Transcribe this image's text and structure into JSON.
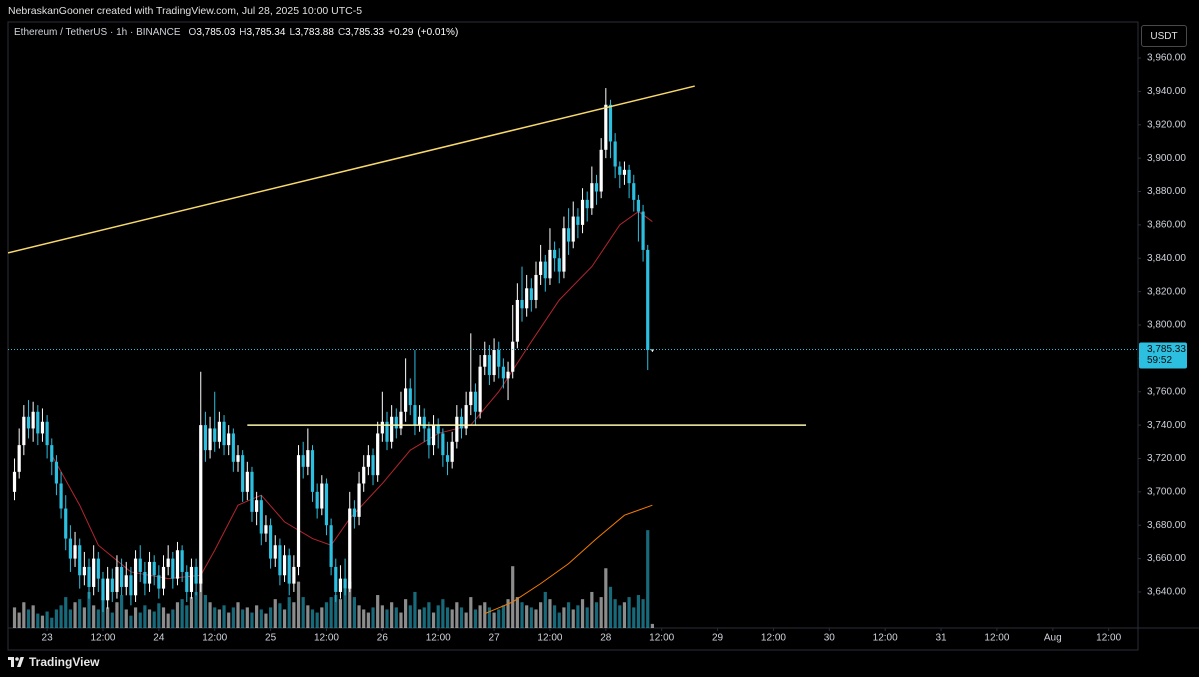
{
  "header": {
    "text": "NebraskanGooner created with TradingView.com, Jul 28, 2025 10:00 UTC-5"
  },
  "footer": {
    "brand": "TradingView"
  },
  "currency_button": "USDT",
  "chart_data": {
    "type": "candlestick",
    "symbol": "Ethereum / TetherUS · 1h · BINANCE",
    "ohlc_legend": [
      {
        "key": "O",
        "value": 3785.03,
        "label": "3,785.03"
      },
      {
        "key": "H",
        "value": 3785.34,
        "label": "3,785.34"
      },
      {
        "key": "L",
        "value": 3783.88,
        "label": "3,783.88"
      },
      {
        "key": "C",
        "value": 3785.33,
        "label": "3,785.33"
      }
    ],
    "change": {
      "value": 0.29,
      "label": "+0.29"
    },
    "change_pct": {
      "value": 0.01,
      "label": "(+0.01%)"
    },
    "up_color": "#ffffff",
    "down_color": "#2cbfdf",
    "grid": false,
    "ylim": [
      3618.4,
      3981.6
    ],
    "yticks": [
      {
        "value": 3640,
        "label": "3,640.00"
      },
      {
        "value": 3660,
        "label": "3,660.00"
      },
      {
        "value": 3680,
        "label": "3,680.00"
      },
      {
        "value": 3700,
        "label": "3,700.00"
      },
      {
        "value": 3720,
        "label": "3,720.00"
      },
      {
        "value": 3740,
        "label": "3,740.00"
      },
      {
        "value": 3760,
        "label": "3,760.00"
      },
      {
        "value": 3780,
        "label": "3,780.00"
      },
      {
        "value": 3800,
        "label": "3,800.00"
      },
      {
        "value": 3820,
        "label": "3,820.00"
      },
      {
        "value": 3840,
        "label": "3,840.00"
      },
      {
        "value": 3860,
        "label": "3,860.00"
      },
      {
        "value": 3880,
        "label": "3,880.00"
      },
      {
        "value": 3900,
        "label": "3,900.00"
      },
      {
        "value": 3920,
        "label": "3,920.00"
      },
      {
        "value": 3940,
        "label": "3,940.00"
      },
      {
        "value": 3960,
        "label": "3,960.00"
      }
    ],
    "xlim": [
      -8.4,
      234.3
    ],
    "xticks": [
      {
        "value": 0,
        "label": "23"
      },
      {
        "value": 12,
        "label": "12:00"
      },
      {
        "value": 24,
        "label": "24"
      },
      {
        "value": 36,
        "label": "12:00"
      },
      {
        "value": 48,
        "label": "25"
      },
      {
        "value": 60,
        "label": "12:00"
      },
      {
        "value": 72,
        "label": "26"
      },
      {
        "value": 84,
        "label": "12:00"
      },
      {
        "value": 96,
        "label": "27"
      },
      {
        "value": 108,
        "label": "12:00"
      },
      {
        "value": 120,
        "label": "28"
      },
      {
        "value": 132,
        "label": "12:00"
      },
      {
        "value": 144,
        "label": "29"
      },
      {
        "value": 156,
        "label": "12:00"
      },
      {
        "value": 168,
        "label": "30"
      },
      {
        "value": 180,
        "label": "12:00"
      },
      {
        "value": 192,
        "label": "31"
      },
      {
        "value": 204,
        "label": "12:00"
      },
      {
        "value": 216,
        "label": "Aug"
      },
      {
        "value": 228,
        "label": "12:00"
      }
    ],
    "x": [
      -7,
      -6,
      -5,
      -4,
      -3,
      -2,
      -1,
      0,
      1,
      2,
      3,
      4,
      5,
      6,
      7,
      8,
      9,
      10,
      11,
      12,
      13,
      14,
      15,
      16,
      17,
      18,
      19,
      20,
      21,
      22,
      23,
      24,
      25,
      26,
      27,
      28,
      29,
      30,
      31,
      32,
      33,
      34,
      35,
      36,
      37,
      38,
      39,
      40,
      41,
      42,
      43,
      44,
      45,
      46,
      47,
      48,
      49,
      50,
      51,
      52,
      53,
      54,
      55,
      56,
      57,
      58,
      59,
      60,
      61,
      62,
      63,
      64,
      65,
      66,
      67,
      68,
      69,
      70,
      71,
      72,
      73,
      74,
      75,
      76,
      77,
      78,
      79,
      80,
      81,
      82,
      83,
      84,
      85,
      86,
      87,
      88,
      89,
      90,
      91,
      92,
      93,
      94,
      95,
      96,
      97,
      98,
      99,
      100,
      101,
      102,
      103,
      104,
      105,
      106,
      107,
      108,
      109,
      110,
      111,
      112,
      113,
      114,
      115,
      116,
      117,
      118,
      119,
      120,
      121,
      122,
      123,
      124,
      125,
      126,
      127,
      128,
      129,
      130
    ],
    "open": [
      3700,
      3712,
      3728,
      3745,
      3738,
      3748,
      3735,
      3742,
      3728,
      3718,
      3705,
      3690,
      3672,
      3660,
      3668,
      3650,
      3655,
      3643,
      3660,
      3648,
      3635,
      3648,
      3640,
      3655,
      3643,
      3650,
      3638,
      3660,
      3652,
      3645,
      3658,
      3650,
      3642,
      3655,
      3660,
      3648,
      3665,
      3652,
      3640,
      3655,
      3645,
      3740,
      3725,
      3738,
      3730,
      3742,
      3728,
      3735,
      3718,
      3722,
      3700,
      3712,
      3688,
      3695,
      3675,
      3680,
      3660,
      3668,
      3650,
      3662,
      3645,
      3655,
      3722,
      3715,
      3725,
      3700,
      3690,
      3705,
      3680,
      3655,
      3640,
      3648,
      3642,
      3690,
      3685,
      3705,
      3715,
      3722,
      3710,
      3735,
      3742,
      3730,
      3745,
      3738,
      3748,
      3762,
      3752,
      3740,
      3745,
      3738,
      3728,
      3740,
      3735,
      3722,
      3718,
      3730,
      3745,
      3738,
      3752,
      3760,
      3748,
      3775,
      3782,
      3770,
      3785,
      3775,
      3768,
      3772,
      3790,
      3815,
      3810,
      3822,
      3815,
      3830,
      3838,
      3828,
      3845,
      3840,
      3832,
      3858,
      3850,
      3865,
      3860,
      3875,
      3870,
      3885,
      3880,
      3905,
      3932,
      3910,
      3895,
      3890,
      3893,
      3885,
      3875,
      3868,
      3845,
      3785.03
    ],
    "high": [
      3720,
      3738,
      3752,
      3755,
      3754,
      3752,
      3750,
      3746,
      3732,
      3722,
      3712,
      3698,
      3680,
      3676,
      3672,
      3664,
      3660,
      3668,
      3664,
      3652,
      3655,
      3654,
      3662,
      3660,
      3658,
      3655,
      3665,
      3668,
      3658,
      3664,
      3662,
      3656,
      3662,
      3668,
      3664,
      3670,
      3668,
      3656,
      3660,
      3660,
      3772,
      3748,
      3745,
      3760,
      3748,
      3746,
      3740,
      3738,
      3728,
      3725,
      3718,
      3715,
      3700,
      3698,
      3686,
      3684,
      3674,
      3672,
      3668,
      3666,
      3662,
      3728,
      3730,
      3738,
      3728,
      3705,
      3710,
      3708,
      3684,
      3660,
      3656,
      3660,
      3700,
      3695,
      3712,
      3722,
      3728,
      3726,
      3742,
      3760,
      3748,
      3752,
      3750,
      3760,
      3780,
      3768,
      3785,
      3752,
      3750,
      3742,
      3746,
      3744,
      3738,
      3730,
      3736,
      3752,
      3750,
      3760,
      3795,
      3765,
      3782,
      3790,
      3788,
      3792,
      3790,
      3780,
      3778,
      3812,
      3825,
      3835,
      3830,
      3828,
      3838,
      3848,
      3842,
      3858,
      3850,
      3846,
      3865,
      3870,
      3874,
      3870,
      3882,
      3880,
      3895,
      3890,
      3912,
      3942,
      3935,
      3915,
      3898,
      3898,
      3896,
      3890,
      3878,
      3872,
      3848,
      3785.34
    ],
    "low": [
      3695,
      3708,
      3722,
      3732,
      3730,
      3728,
      3730,
      3720,
      3710,
      3698,
      3684,
      3665,
      3652,
      3655,
      3642,
      3644,
      3636,
      3638,
      3640,
      3628,
      3630,
      3634,
      3636,
      3638,
      3638,
      3632,
      3634,
      3646,
      3638,
      3640,
      3644,
      3636,
      3638,
      3650,
      3642,
      3644,
      3646,
      3634,
      3636,
      3638,
      3640,
      3718,
      3720,
      3724,
      3726,
      3722,
      3722,
      3712,
      3712,
      3694,
      3695,
      3682,
      3680,
      3668,
      3670,
      3654,
      3655,
      3644,
      3646,
      3638,
      3640,
      3650,
      3708,
      3710,
      3694,
      3684,
      3686,
      3674,
      3650,
      3634,
      3636,
      3638,
      3640,
      3678,
      3680,
      3700,
      3710,
      3704,
      3706,
      3730,
      3725,
      3726,
      3732,
      3734,
      3742,
      3746,
      3734,
      3736,
      3730,
      3720,
      3722,
      3726,
      3715,
      3710,
      3714,
      3726,
      3732,
      3734,
      3746,
      3740,
      3744,
      3770,
      3764,
      3766,
      3768,
      3762,
      3755,
      3768,
      3786,
      3802,
      3805,
      3808,
      3810,
      3824,
      3820,
      3824,
      3832,
      3825,
      3828,
      3842,
      3846,
      3852,
      3855,
      3862,
      3866,
      3872,
      3876,
      3900,
      3900,
      3888,
      3882,
      3884,
      3876,
      3868,
      3850,
      3838,
      3773,
      3783.88
    ],
    "close": [
      3712,
      3728,
      3745,
      3738,
      3748,
      3735,
      3742,
      3728,
      3718,
      3705,
      3690,
      3672,
      3660,
      3668,
      3650,
      3655,
      3643,
      3660,
      3648,
      3635,
      3648,
      3640,
      3655,
      3643,
      3650,
      3638,
      3660,
      3652,
      3645,
      3658,
      3650,
      3642,
      3655,
      3660,
      3648,
      3665,
      3652,
      3640,
      3655,
      3645,
      3740,
      3725,
      3738,
      3730,
      3742,
      3728,
      3735,
      3718,
      3722,
      3700,
      3712,
      3688,
      3695,
      3675,
      3680,
      3660,
      3668,
      3650,
      3662,
      3645,
      3655,
      3722,
      3715,
      3725,
      3700,
      3690,
      3705,
      3680,
      3655,
      3640,
      3648,
      3642,
      3690,
      3685,
      3705,
      3715,
      3722,
      3710,
      3735,
      3742,
      3730,
      3745,
      3738,
      3748,
      3762,
      3752,
      3740,
      3745,
      3738,
      3728,
      3740,
      3735,
      3722,
      3718,
      3730,
      3745,
      3738,
      3752,
      3760,
      3748,
      3775,
      3782,
      3770,
      3785,
      3775,
      3768,
      3772,
      3790,
      3815,
      3810,
      3822,
      3815,
      3830,
      3838,
      3828,
      3845,
      3840,
      3832,
      3858,
      3850,
      3865,
      3860,
      3875,
      3870,
      3885,
      3880,
      3905,
      3932,
      3910,
      3895,
      3890,
      3893,
      3885,
      3875,
      3868,
      3845,
      3785,
      3785.33
    ],
    "volume_ylim": [
      0,
      100
    ],
    "volume": [
      20,
      15,
      25,
      18,
      22,
      14,
      12,
      16,
      10,
      18,
      22,
      30,
      18,
      25,
      28,
      20,
      35,
      22,
      18,
      30,
      20,
      15,
      25,
      32,
      18,
      12,
      20,
      15,
      22,
      18,
      16,
      24,
      20,
      14,
      18,
      25,
      28,
      22,
      30,
      35,
      48,
      32,
      25,
      20,
      18,
      22,
      15,
      20,
      25,
      18,
      20,
      15,
      22,
      18,
      14,
      20,
      28,
      24,
      18,
      30,
      25,
      45,
      30,
      22,
      18,
      15,
      20,
      25,
      30,
      32,
      28,
      38,
      45,
      30,
      22,
      18,
      15,
      20,
      32,
      22,
      18,
      25,
      20,
      15,
      28,
      22,
      35,
      18,
      20,
      25,
      15,
      22,
      28,
      20,
      18,
      25,
      20,
      15,
      30,
      18,
      22,
      25,
      20,
      15,
      18,
      22,
      28,
      60,
      30,
      25,
      22,
      20,
      18,
      25,
      35,
      28,
      22,
      15,
      20,
      25,
      18,
      22,
      28,
      20,
      35,
      25,
      30,
      58,
      40,
      28,
      22,
      25,
      30,
      20,
      32,
      28,
      95,
      4
    ],
    "overlays": [
      {
        "color": "#b3262f",
        "x": [
          1,
          7,
          11,
          18,
          26,
          33,
          36,
          41,
          46,
          51,
          57,
          61,
          65,
          72,
          78,
          84,
          91,
          97,
          104,
          110,
          117,
          123,
          127,
          130
        ],
        "values": [
          3722,
          3692,
          3668,
          3652,
          3648,
          3650,
          3665,
          3692,
          3698,
          3682,
          3672,
          3668,
          3684,
          3705,
          3725,
          3735,
          3740,
          3760,
          3790,
          3815,
          3835,
          3860,
          3868,
          3862
        ]
      },
      {
        "color": "#f57c00",
        "x": [
          94,
          100,
          106,
          112,
          118,
          124,
          130
        ],
        "values": [
          3627,
          3634,
          3645,
          3657,
          3672,
          3686,
          3692
        ]
      }
    ],
    "trendlines": [
      {
        "color": "#f7d96b",
        "x": [
          -8.4,
          139.1
        ],
        "values": [
          3843.2,
          3943.2
        ]
      },
      {
        "color": "#fdf7a8",
        "x": [
          43,
          163
        ],
        "values": [
          3740,
          3740
        ]
      }
    ],
    "last_price": {
      "value": 3785.33,
      "label": "3,785.33"
    },
    "countdown": "59:52"
  }
}
